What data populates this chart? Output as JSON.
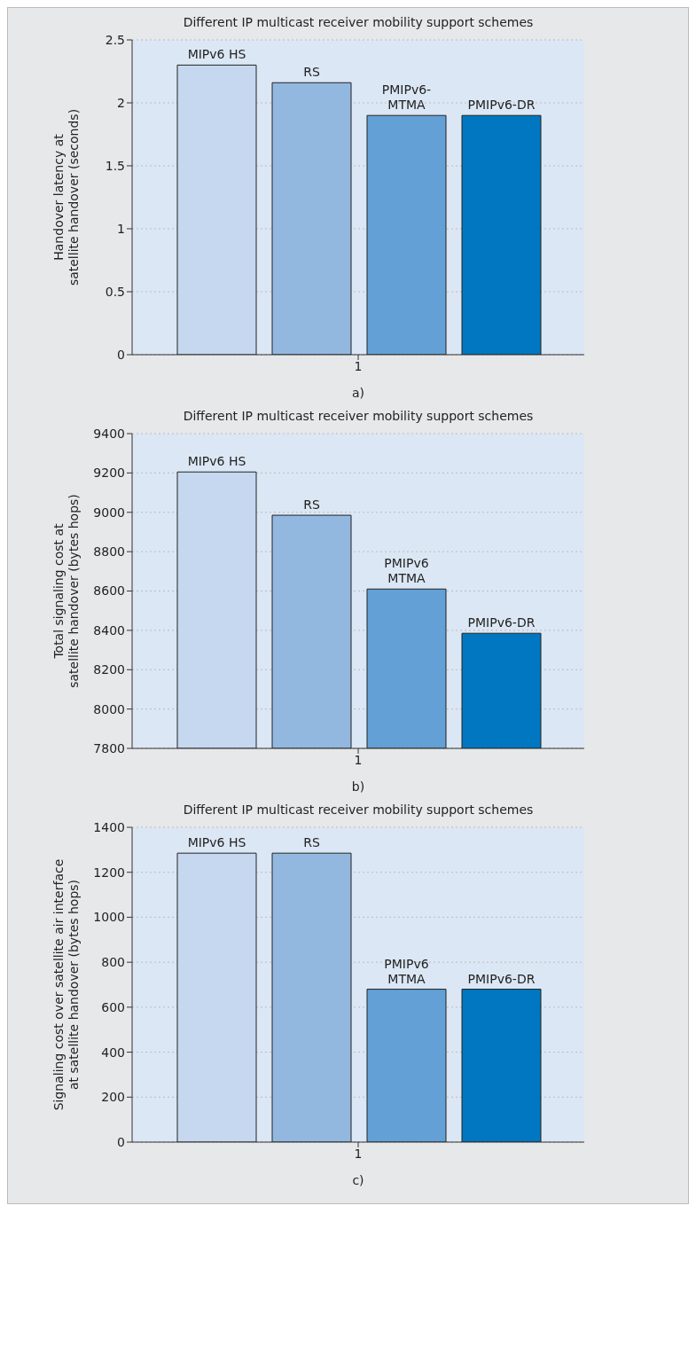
{
  "chart_data": [
    {
      "type": "bar",
      "title": "Different IP multicast receiver mobility support schemes",
      "ylabel": "Handover latency at satellite handover (seconds)",
      "annotations": [
        "a)"
      ],
      "categories": [
        "1"
      ],
      "ylim": [
        0,
        2.5
      ],
      "yticks": [
        0,
        0.5,
        1,
        1.5,
        2,
        2.5
      ],
      "grid": "y",
      "series": [
        {
          "name": "MIPv6 HS",
          "color": "#c5d8ef",
          "values": [
            2.3
          ]
        },
        {
          "name": "RS",
          "color": "#93b8e0",
          "values": [
            2.16
          ]
        },
        {
          "name": "PMIPv6-\nMTMA",
          "color": "#63a0d5",
          "values": [
            1.9
          ]
        },
        {
          "name": "PMIPv6-DR",
          "color": "#0077c0",
          "values": [
            1.9
          ]
        }
      ]
    },
    {
      "type": "bar",
      "title": "Different IP multicast receiver mobility support schemes",
      "ylabel": "Total signaling cost at satellite handover (bytes hops)",
      "annotations": [
        "b)"
      ],
      "categories": [
        "1"
      ],
      "ylim": [
        7800,
        9400
      ],
      "yticks": [
        7800,
        8000,
        8200,
        8400,
        8600,
        8800,
        9000,
        9200,
        9400
      ],
      "grid": "y",
      "series": [
        {
          "name": "MIPv6 HS",
          "color": "#c5d8ef",
          "values": [
            9205
          ]
        },
        {
          "name": "RS",
          "color": "#93b8e0",
          "values": [
            8985
          ]
        },
        {
          "name": "PMIPv6\nMTMA",
          "color": "#63a0d5",
          "values": [
            8610
          ]
        },
        {
          "name": "PMIPv6-DR",
          "color": "#0077c0",
          "values": [
            8385
          ]
        }
      ]
    },
    {
      "type": "bar",
      "title": "Different IP multicast receiver mobility support schemes",
      "ylabel": "Signaling cost over satellite air interface at satellite handover (bytes hops)",
      "annotations": [
        "c)"
      ],
      "categories": [
        "1"
      ],
      "ylim": [
        0,
        1400
      ],
      "yticks": [
        0,
        200,
        400,
        600,
        800,
        1000,
        1200,
        1400
      ],
      "grid": "y",
      "series": [
        {
          "name": "MIPv6 HS",
          "color": "#c5d8ef",
          "values": [
            1285
          ]
        },
        {
          "name": "RS",
          "color": "#93b8e0",
          "values": [
            1285
          ]
        },
        {
          "name": "PMIPv6\nMTMA",
          "color": "#63a0d5",
          "values": [
            680
          ]
        },
        {
          "name": "PMIPv6-DR",
          "color": "#0077c0",
          "values": [
            680
          ]
        }
      ]
    }
  ]
}
